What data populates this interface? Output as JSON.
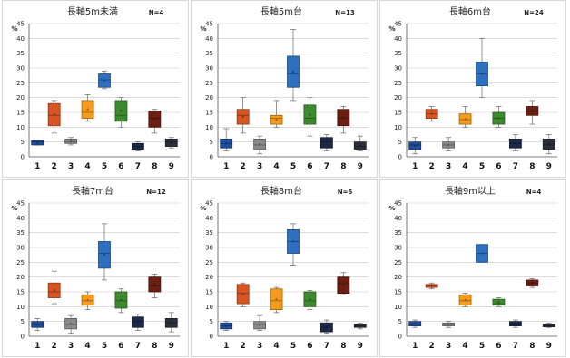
{
  "unit": "%",
  "chart_data": [
    {
      "type": "box",
      "title": "長軸5m未満",
      "n_label": "N=4",
      "categories": [
        "1",
        "2",
        "3",
        "4",
        "5",
        "6",
        "7",
        "8",
        "9"
      ],
      "ylim": [
        0,
        45
      ],
      "yticks": [
        0,
        5,
        10,
        15,
        20,
        25,
        30,
        35,
        40,
        45
      ],
      "boxes": [
        {
          "min": 4,
          "q1": 4,
          "median": 5,
          "q3": 5.5,
          "max": 5.5,
          "color": "#1f4e9a"
        },
        {
          "min": 8,
          "q1": 10.5,
          "median": 14,
          "q3": 18,
          "max": 19,
          "color": "#d9541e"
        },
        {
          "min": 4,
          "q1": 4.5,
          "median": 5,
          "q3": 6,
          "max": 6.5,
          "color": "#8a8a8a"
        },
        {
          "min": 12,
          "q1": 13,
          "median": 15,
          "q3": 19,
          "max": 21,
          "color": "#f39c1f"
        },
        {
          "min": 23,
          "q1": 23.5,
          "median": 26,
          "q3": 28,
          "max": 29,
          "color": "#2e6fc0"
        },
        {
          "min": 10,
          "q1": 12,
          "median": 14,
          "q3": 19,
          "max": 20,
          "color": "#3c8a2e"
        },
        {
          "min": 2,
          "q1": 2.5,
          "median": 3.5,
          "q3": 4.5,
          "max": 5,
          "color": "#1c2a4a"
        },
        {
          "min": 8,
          "q1": 10,
          "median": 13,
          "q3": 15.5,
          "max": 16,
          "color": "#6b1e12"
        },
        {
          "min": 3,
          "q1": 3.5,
          "median": 5,
          "q3": 6,
          "max": 6.5,
          "color": "#2a2f3a"
        }
      ]
    },
    {
      "type": "box",
      "title": "長軸5m台",
      "n_label": "N=13",
      "categories": [
        "1",
        "2",
        "3",
        "4",
        "5",
        "6",
        "7",
        "8",
        "9"
      ],
      "ylim": [
        0,
        45
      ],
      "yticks": [
        0,
        5,
        10,
        15,
        20,
        25,
        30,
        35,
        40,
        45
      ],
      "boxes": [
        {
          "min": 2,
          "q1": 3,
          "median": 4.5,
          "q3": 6,
          "max": 9.5,
          "color": "#1f4e9a"
        },
        {
          "min": 8,
          "q1": 11,
          "median": 14,
          "q3": 16,
          "max": 20,
          "color": "#d9541e"
        },
        {
          "min": 1,
          "q1": 2.5,
          "median": 4,
          "q3": 6,
          "max": 7,
          "color": "#8a8a8a"
        },
        {
          "min": 10,
          "q1": 11,
          "median": 13,
          "q3": 14,
          "max": 19,
          "color": "#f39c1f"
        },
        {
          "min": 19,
          "q1": 23.5,
          "median": 28,
          "q3": 34,
          "max": 43,
          "color": "#2e6fc0"
        },
        {
          "min": 7,
          "q1": 11,
          "median": 13,
          "q3": 17.5,
          "max": 20,
          "color": "#3c8a2e"
        },
        {
          "min": 2,
          "q1": 3,
          "median": 5,
          "q3": 6.5,
          "max": 7.5,
          "color": "#1c2a4a"
        },
        {
          "min": 8,
          "q1": 10.5,
          "median": 13,
          "q3": 16,
          "max": 17,
          "color": "#6b1e12"
        },
        {
          "min": 2,
          "q1": 2.5,
          "median": 3.5,
          "q3": 5,
          "max": 7,
          "color": "#2a2f3a"
        }
      ]
    },
    {
      "type": "box",
      "title": "長軸6m台",
      "n_label": "N=24",
      "categories": [
        "1",
        "2",
        "3",
        "4",
        "5",
        "6",
        "7",
        "8",
        "9"
      ],
      "ylim": [
        0,
        45
      ],
      "yticks": [
        0,
        5,
        10,
        15,
        20,
        25,
        30,
        35,
        40,
        45
      ],
      "boxes": [
        {
          "min": 1,
          "q1": 2.5,
          "median": 4,
          "q3": 5,
          "max": 6.5,
          "color": "#1f4e9a"
        },
        {
          "min": 12,
          "q1": 13,
          "median": 14.5,
          "q3": 16,
          "max": 17,
          "color": "#d9541e"
        },
        {
          "min": 2,
          "q1": 3,
          "median": 4,
          "q3": 5,
          "max": 6.5,
          "color": "#8a8a8a"
        },
        {
          "min": 10,
          "q1": 11,
          "median": 12.5,
          "q3": 14.5,
          "max": 17,
          "color": "#f39c1f"
        },
        {
          "min": 20,
          "q1": 24,
          "median": 28,
          "q3": 32,
          "max": 40,
          "color": "#2e6fc0"
        },
        {
          "min": 10,
          "q1": 11,
          "median": 13,
          "q3": 15,
          "max": 17,
          "color": "#3c8a2e"
        },
        {
          "min": 2,
          "q1": 3,
          "median": 4.5,
          "q3": 6,
          "max": 7.5,
          "color": "#1c2a4a"
        },
        {
          "min": 11,
          "q1": 14,
          "median": 15.5,
          "q3": 17,
          "max": 19,
          "color": "#6b1e12"
        },
        {
          "min": 1,
          "q1": 2.5,
          "median": 4,
          "q3": 6,
          "max": 7.5,
          "color": "#2a2f3a"
        }
      ]
    },
    {
      "type": "box",
      "title": "長軸7m台",
      "n_label": "N=12",
      "categories": [
        "1",
        "2",
        "3",
        "4",
        "5",
        "6",
        "7",
        "8",
        "9"
      ],
      "ylim": [
        0,
        45
      ],
      "yticks": [
        0,
        5,
        10,
        15,
        20,
        25,
        30,
        35,
        40,
        45
      ],
      "boxes": [
        {
          "min": 2,
          "q1": 3,
          "median": 4,
          "q3": 5,
          "max": 6,
          "color": "#1f4e9a"
        },
        {
          "min": 11,
          "q1": 13,
          "median": 15,
          "q3": 18,
          "max": 22,
          "color": "#d9541e"
        },
        {
          "min": 1,
          "q1": 2.5,
          "median": 4,
          "q3": 6,
          "max": 7,
          "color": "#8a8a8a"
        },
        {
          "min": 9,
          "q1": 10.5,
          "median": 12,
          "q3": 14,
          "max": 15,
          "color": "#f39c1f"
        },
        {
          "min": 19,
          "q1": 23,
          "median": 28,
          "q3": 32,
          "max": 38,
          "color": "#2e6fc0"
        },
        {
          "min": 8,
          "q1": 9.5,
          "median": 12,
          "q3": 15,
          "max": 16,
          "color": "#3c8a2e"
        },
        {
          "min": 2,
          "q1": 3,
          "median": 5,
          "q3": 6.5,
          "max": 7.5,
          "color": "#1c2a4a"
        },
        {
          "min": 13,
          "q1": 15,
          "median": 17,
          "q3": 20,
          "max": 21,
          "color": "#6b1e12"
        },
        {
          "min": 1.5,
          "q1": 3,
          "median": 4.5,
          "q3": 6,
          "max": 8,
          "color": "#2a2f3a"
        }
      ]
    },
    {
      "type": "box",
      "title": "長軸8m台",
      "n_label": "N=6",
      "categories": [
        "1",
        "2",
        "3",
        "4",
        "5",
        "6",
        "7",
        "8",
        "9"
      ],
      "ylim": [
        0,
        45
      ],
      "yticks": [
        0,
        5,
        10,
        15,
        20,
        25,
        30,
        35,
        40,
        45
      ],
      "boxes": [
        {
          "min": 2,
          "q1": 2.5,
          "median": 3.5,
          "q3": 4.5,
          "max": 5,
          "color": "#1f4e9a"
        },
        {
          "min": 10,
          "q1": 11,
          "median": 14.5,
          "q3": 17.5,
          "max": 18,
          "color": "#d9541e"
        },
        {
          "min": 2,
          "q1": 2.5,
          "median": 4,
          "q3": 5,
          "max": 7,
          "color": "#8a8a8a"
        },
        {
          "min": 8,
          "q1": 9,
          "median": 12,
          "q3": 16,
          "max": 16.5,
          "color": "#f39c1f"
        },
        {
          "min": 24,
          "q1": 28,
          "median": 32,
          "q3": 36,
          "max": 38,
          "color": "#2e6fc0"
        },
        {
          "min": 9,
          "q1": 10,
          "median": 12,
          "q3": 15,
          "max": 15.5,
          "color": "#3c8a2e"
        },
        {
          "min": 1,
          "q1": 1.5,
          "median": 3,
          "q3": 4.5,
          "max": 5.5,
          "color": "#1c2a4a"
        },
        {
          "min": 14,
          "q1": 14.5,
          "median": 18,
          "q3": 20,
          "max": 21.5,
          "color": "#6b1e12"
        },
        {
          "min": 2.5,
          "q1": 3,
          "median": 3.5,
          "q3": 4,
          "max": 4.5,
          "color": "#2a2f3a"
        }
      ]
    },
    {
      "type": "box",
      "title": "長軸9m以上",
      "n_label": "N=4",
      "categories": [
        "1",
        "2",
        "3",
        "4",
        "5",
        "6",
        "7",
        "8",
        "9"
      ],
      "ylim": [
        0,
        45
      ],
      "yticks": [
        0,
        5,
        10,
        15,
        20,
        25,
        30,
        35,
        40,
        45
      ],
      "boxes": [
        {
          "min": 3,
          "q1": 3.5,
          "median": 4,
          "q3": 5,
          "max": 5.5,
          "color": "#1f4e9a"
        },
        {
          "min": 16,
          "q1": 16.5,
          "median": 17,
          "q3": 17.5,
          "max": 18,
          "color": "#d9541e"
        },
        {
          "min": 3,
          "q1": 3.5,
          "median": 4,
          "q3": 4.5,
          "max": 5,
          "color": "#8a8a8a"
        },
        {
          "min": 10,
          "q1": 10.5,
          "median": 12,
          "q3": 14,
          "max": 14.5,
          "color": "#f39c1f"
        },
        {
          "min": 25,
          "q1": 25,
          "median": 28,
          "q3": 31,
          "max": 31,
          "color": "#2e6fc0"
        },
        {
          "min": 10,
          "q1": 10.5,
          "median": 11,
          "q3": 12.5,
          "max": 13,
          "color": "#3c8a2e"
        },
        {
          "min": 3,
          "q1": 3.5,
          "median": 4,
          "q3": 5,
          "max": 5.5,
          "color": "#1c2a4a"
        },
        {
          "min": 16.5,
          "q1": 17,
          "median": 18,
          "q3": 19,
          "max": 19.5,
          "color": "#6b1e12"
        },
        {
          "min": 3,
          "q1": 3.2,
          "median": 3.5,
          "q3": 4,
          "max": 4.5,
          "color": "#2a2f3a"
        }
      ]
    }
  ]
}
